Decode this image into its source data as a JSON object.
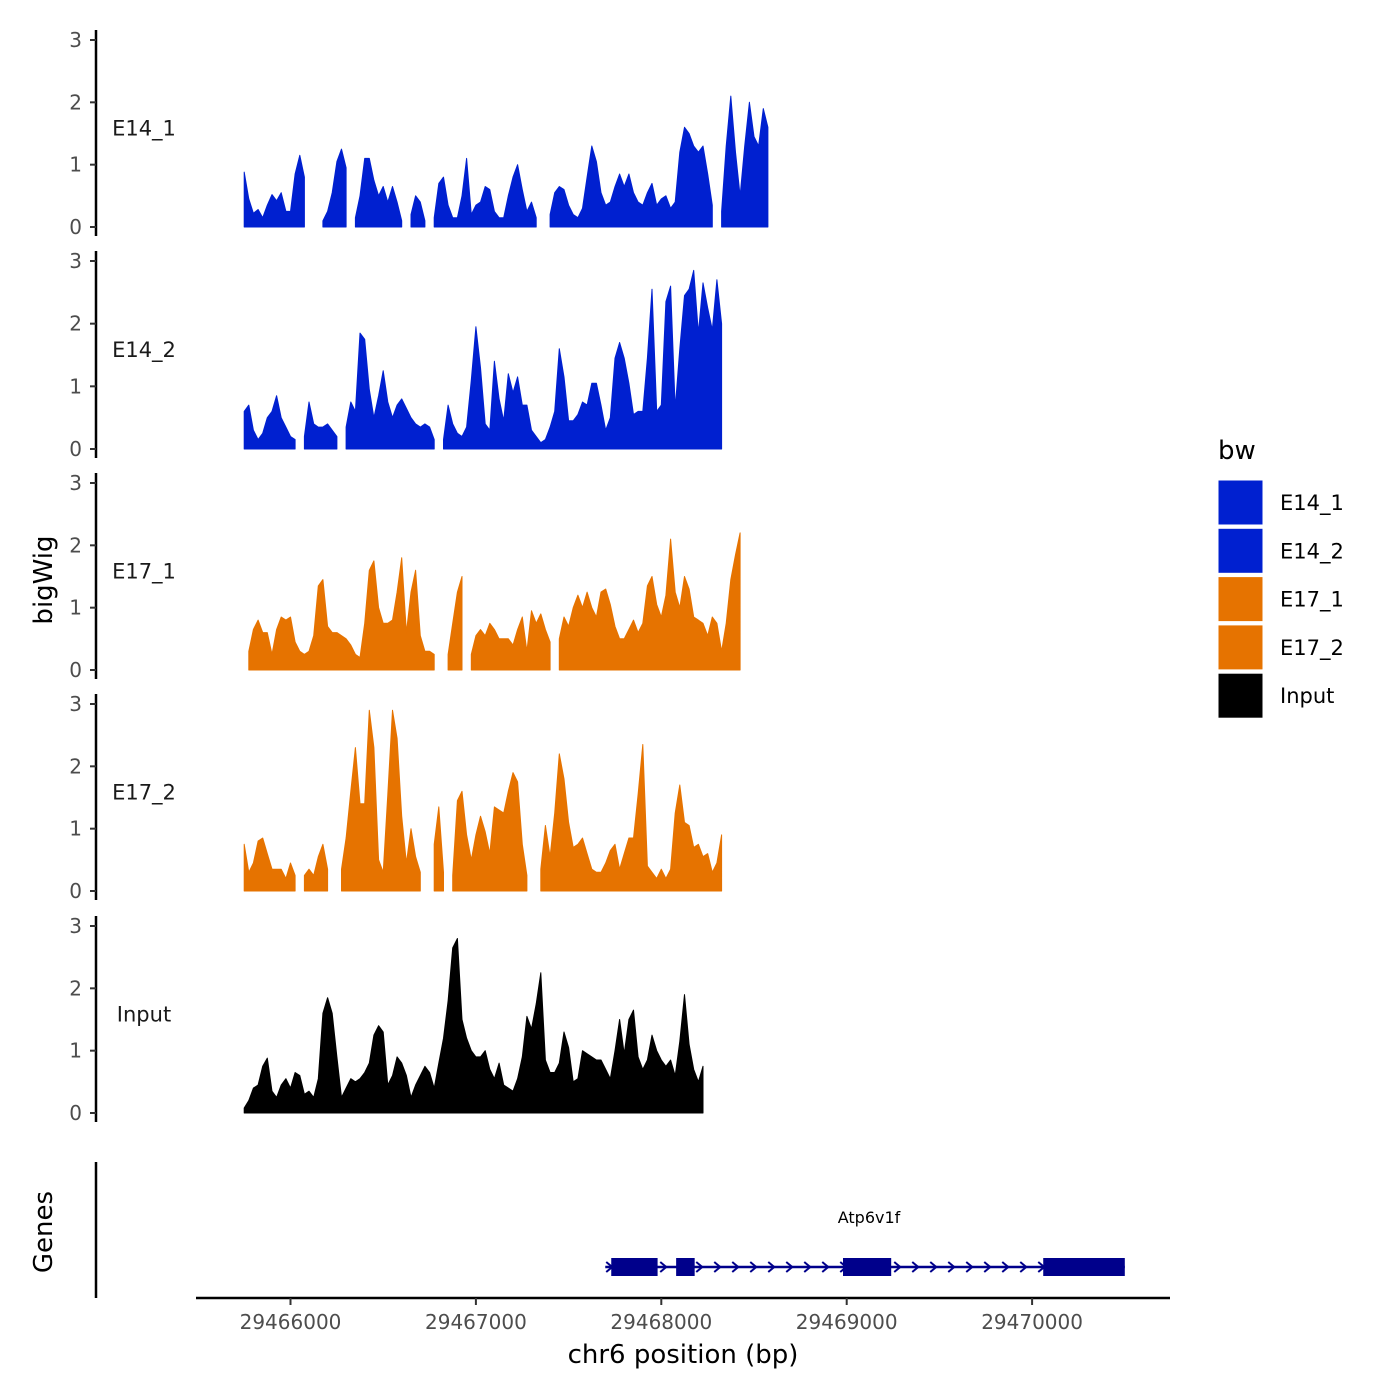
{
  "chart_data": {
    "type": "area",
    "title": "",
    "ylabel": "bigWig",
    "xlabel": "chr6 position (bp)",
    "genes_label": "Genes",
    "xlim": [
      29465450,
      29470700
    ],
    "ylim": [
      0,
      3
    ],
    "yticks": [
      "0",
      "1",
      "2",
      "3"
    ],
    "xticks": [
      {
        "value": 29466000,
        "label": "29466000"
      },
      {
        "value": 29467000,
        "label": "29467000"
      },
      {
        "value": 29468000,
        "label": "29468000"
      },
      {
        "value": 29469000,
        "label": "29469000"
      },
      {
        "value": 29470000,
        "label": "29470000"
      }
    ],
    "legend": {
      "title": "bw",
      "position": "right",
      "entries": [
        {
          "name": "E14_1",
          "color": "#0020d0"
        },
        {
          "name": "E14_2",
          "color": "#0020d0"
        },
        {
          "name": "E17_1",
          "color": "#e67300"
        },
        {
          "name": "E17_2",
          "color": "#e67300"
        },
        {
          "name": "Input",
          "color": "#000000"
        }
      ]
    },
    "x_start": 29465750,
    "x_step": 25,
    "series": [
      {
        "name": "E14_1",
        "color": "#0020d0",
        "values": [
          0.88,
          0.45,
          0.22,
          0.28,
          0.15,
          0.35,
          0.52,
          0.42,
          0.55,
          0.25,
          0.25,
          0.85,
          1.15,
          0.8,
          null,
          null,
          null,
          0.1,
          0.25,
          0.55,
          1.05,
          1.25,
          0.95,
          null,
          0.15,
          0.5,
          1.1,
          1.1,
          0.75,
          0.5,
          0.65,
          0.4,
          0.65,
          0.4,
          0.1,
          null,
          0.2,
          0.5,
          0.4,
          0.1,
          null,
          0.15,
          0.7,
          0.8,
          0.35,
          0.15,
          0.15,
          0.5,
          1.1,
          0.2,
          0.35,
          0.4,
          0.65,
          0.6,
          0.25,
          0.15,
          0.15,
          0.5,
          0.8,
          1.0,
          0.6,
          0.25,
          0.4,
          0.15,
          null,
          null,
          0.2,
          0.55,
          0.65,
          0.6,
          0.35,
          0.2,
          0.15,
          0.3,
          0.8,
          1.3,
          1.05,
          0.55,
          0.35,
          0.4,
          0.65,
          0.85,
          0.65,
          0.85,
          0.55,
          0.4,
          0.35,
          0.55,
          0.7,
          0.35,
          0.45,
          0.5,
          0.3,
          0.4,
          1.2,
          1.6,
          1.5,
          1.3,
          1.2,
          1.3,
          0.85,
          0.35,
          null,
          0.25,
          1.3,
          2.1,
          1.2,
          0.5,
          1.3,
          2.0,
          1.45,
          1.3,
          1.9,
          1.6
        ]
      },
      {
        "name": "E14_2",
        "color": "#0020d0",
        "values": [
          0.6,
          0.7,
          0.3,
          0.15,
          0.25,
          0.5,
          0.6,
          0.85,
          0.5,
          0.35,
          0.2,
          0.15,
          null,
          0.2,
          0.75,
          0.4,
          0.35,
          0.35,
          0.4,
          0.3,
          0.2,
          null,
          0.35,
          0.75,
          0.6,
          1.85,
          1.75,
          0.95,
          0.5,
          0.85,
          1.25,
          0.75,
          0.5,
          0.7,
          0.8,
          0.65,
          0.5,
          0.4,
          0.35,
          0.4,
          0.35,
          0.15,
          null,
          0.15,
          0.7,
          0.4,
          0.25,
          0.2,
          0.35,
          1.1,
          1.95,
          1.3,
          0.4,
          0.3,
          1.4,
          0.8,
          0.45,
          1.2,
          0.9,
          1.15,
          0.7,
          0.7,
          0.3,
          0.2,
          0.1,
          0.15,
          0.35,
          0.6,
          1.6,
          1.15,
          0.45,
          0.45,
          0.55,
          0.75,
          0.7,
          1.05,
          1.05,
          0.7,
          0.3,
          0.5,
          1.45,
          1.7,
          1.45,
          1.05,
          0.55,
          0.6,
          0.6,
          1.45,
          2.55,
          0.6,
          0.7,
          2.35,
          2.6,
          0.65,
          1.6,
          2.45,
          2.55,
          2.85,
          1.85,
          2.65,
          2.25,
          1.9,
          2.7,
          2.0
        ]
      },
      {
        "name": "E17_1",
        "color": "#e67300",
        "values": [
          null,
          0.3,
          0.65,
          0.8,
          0.6,
          0.6,
          0.25,
          0.65,
          0.85,
          0.8,
          0.85,
          0.45,
          0.3,
          0.25,
          0.3,
          0.55,
          1.35,
          1.45,
          0.7,
          0.6,
          0.6,
          0.55,
          0.5,
          0.4,
          0.25,
          0.2,
          0.75,
          1.6,
          1.75,
          1.0,
          0.75,
          0.75,
          0.8,
          1.25,
          1.8,
          0.6,
          1.25,
          1.6,
          0.55,
          0.3,
          0.3,
          0.25,
          null,
          null,
          0.25,
          0.75,
          1.25,
          1.5,
          null,
          0.25,
          0.55,
          0.65,
          0.55,
          0.75,
          0.65,
          0.5,
          0.5,
          0.5,
          0.4,
          0.65,
          0.85,
          0.3,
          0.95,
          0.75,
          0.9,
          0.65,
          0.45,
          null,
          0.5,
          0.85,
          0.7,
          1.0,
          1.2,
          1.0,
          1.25,
          1.0,
          0.85,
          1.25,
          1.3,
          1.05,
          0.7,
          0.5,
          0.5,
          0.65,
          0.8,
          0.6,
          0.75,
          1.35,
          1.5,
          1.05,
          0.85,
          1.2,
          2.1,
          1.25,
          1.0,
          1.5,
          1.3,
          0.85,
          0.8,
          0.75,
          0.55,
          0.85,
          0.75,
          0.3,
          0.75,
          1.45,
          1.85,
          2.2
        ]
      },
      {
        "name": "E17_2",
        "color": "#e67300",
        "values": [
          0.75,
          0.3,
          0.45,
          0.8,
          0.85,
          0.6,
          0.35,
          0.35,
          0.35,
          0.2,
          0.45,
          0.25,
          null,
          0.25,
          0.35,
          0.25,
          0.55,
          0.75,
          0.35,
          null,
          null,
          0.35,
          0.85,
          1.6,
          2.3,
          1.4,
          1.4,
          2.9,
          2.3,
          0.5,
          0.3,
          1.55,
          2.9,
          2.45,
          1.2,
          0.45,
          1.0,
          0.55,
          0.3,
          null,
          null,
          0.75,
          1.35,
          0.3,
          null,
          0.25,
          1.45,
          1.6,
          0.9,
          0.5,
          0.9,
          1.2,
          0.95,
          0.6,
          1.35,
          1.3,
          1.25,
          1.6,
          1.9,
          1.75,
          0.75,
          0.25,
          null,
          null,
          0.35,
          1.05,
          0.55,
          1.25,
          2.2,
          1.8,
          1.1,
          0.7,
          0.75,
          0.85,
          0.6,
          0.35,
          0.3,
          0.3,
          0.45,
          0.65,
          0.75,
          0.35,
          0.6,
          0.85,
          0.85,
          1.55,
          2.35,
          0.4,
          0.3,
          0.2,
          0.35,
          0.2,
          0.35,
          1.25,
          1.7,
          1.1,
          1.05,
          0.7,
          0.75,
          0.55,
          0.6,
          0.3,
          0.45,
          0.9
        ]
      },
      {
        "name": "Input",
        "color": "#000000",
        "values": [
          0.08,
          0.2,
          0.4,
          0.45,
          0.75,
          0.88,
          0.35,
          0.25,
          0.45,
          0.55,
          0.4,
          0.65,
          0.6,
          0.3,
          0.35,
          0.25,
          0.55,
          1.6,
          1.85,
          1.6,
          0.9,
          0.25,
          0.4,
          0.55,
          0.5,
          0.55,
          0.65,
          0.8,
          1.25,
          1.4,
          1.3,
          0.45,
          0.6,
          0.9,
          0.8,
          0.6,
          0.25,
          0.45,
          0.6,
          0.75,
          0.65,
          0.4,
          0.8,
          1.2,
          1.8,
          2.65,
          2.8,
          1.5,
          1.2,
          1.0,
          0.9,
          0.9,
          1.0,
          0.7,
          0.55,
          0.8,
          0.45,
          0.4,
          0.35,
          0.55,
          0.9,
          1.55,
          1.35,
          1.75,
          2.25,
          0.85,
          0.65,
          0.65,
          0.8,
          1.3,
          1.05,
          0.5,
          0.55,
          1.0,
          0.95,
          0.9,
          0.85,
          0.85,
          0.7,
          0.55,
          1.0,
          1.5,
          0.95,
          1.5,
          1.65,
          0.9,
          0.7,
          0.85,
          1.25,
          1.0,
          0.85,
          0.75,
          0.85,
          0.6,
          1.15,
          1.9,
          1.1,
          0.7,
          0.5,
          0.75
        ]
      }
    ],
    "gene": {
      "name": "Atp6v1f",
      "start": 29467730,
      "end": 29470500,
      "strand": "+",
      "exons": [
        {
          "start": 29467730,
          "end": 29467980
        },
        {
          "start": 29468080,
          "end": 29468180
        },
        {
          "start": 29468980,
          "end": 29469240
        },
        {
          "start": 29470060,
          "end": 29470500
        }
      ],
      "color": "#00008b"
    }
  }
}
